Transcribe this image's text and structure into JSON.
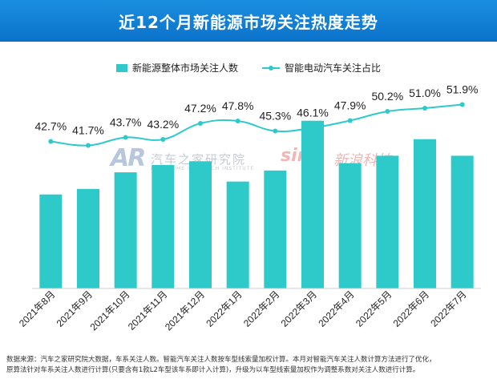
{
  "header": {
    "title": "近12个月新能源市场关注热度走势"
  },
  "legend": {
    "bar_label": "新能源整体市场关注人数",
    "line_label": "智能电动汽车关注占比"
  },
  "watermarks": {
    "ar_logo": "AR",
    "ar_name": "汽车之家研究院",
    "ar_sub": "AUTOHOME RESEARCH INSTITUTE",
    "sina_logo": "sina",
    "sina_name": "新浪科技"
  },
  "colors": {
    "accent": "#2ec9c9",
    "header": "#0b72c9"
  },
  "chart_data": {
    "type": "bar",
    "categories": [
      "2021年8月",
      "2021年9月",
      "2021年10月",
      "2021年11月",
      "2021年12月",
      "2022年1月",
      "2022年2月",
      "2022年3月",
      "2022年4月",
      "2022年5月",
      "2022年6月",
      "2022年7月"
    ],
    "series": [
      {
        "name": "新能源整体市场关注人数",
        "type": "bar",
        "values": [
          51,
          54,
          63,
          67,
          69,
          58,
          64,
          91,
          68,
          72,
          81,
          72
        ]
      },
      {
        "name": "智能电动汽车关注占比",
        "type": "line",
        "values": [
          42.7,
          41.7,
          43.7,
          43.2,
          47.2,
          47.8,
          45.3,
          46.1,
          47.9,
          50.2,
          51.0,
          51.9
        ],
        "labels": [
          "42.7%",
          "41.7%",
          "43.7%",
          "43.2%",
          "47.2%",
          "47.8%",
          "45.3%",
          "46.1%",
          "47.9%",
          "50.2%",
          "51.0%",
          "51.9%"
        ]
      }
    ],
    "bar_ylim": [
      0,
      100
    ],
    "line_ylim": [
      20,
      60
    ],
    "legend_position": "top-center",
    "grid": false
  },
  "footnote": {
    "line1": "数据来源：汽车之家研究院大数据，车系关注人数。智能汽车关注人数按车型线索量加权计算。本月对智能汽车关注人数计算方法进行了优化，",
    "line2": "原算法针对车系关注人数进行计算(只要含有1款L2车型该车系即计入计算)，升级为以车型线索量加权作为调整系数对关注人数进行计算。"
  }
}
